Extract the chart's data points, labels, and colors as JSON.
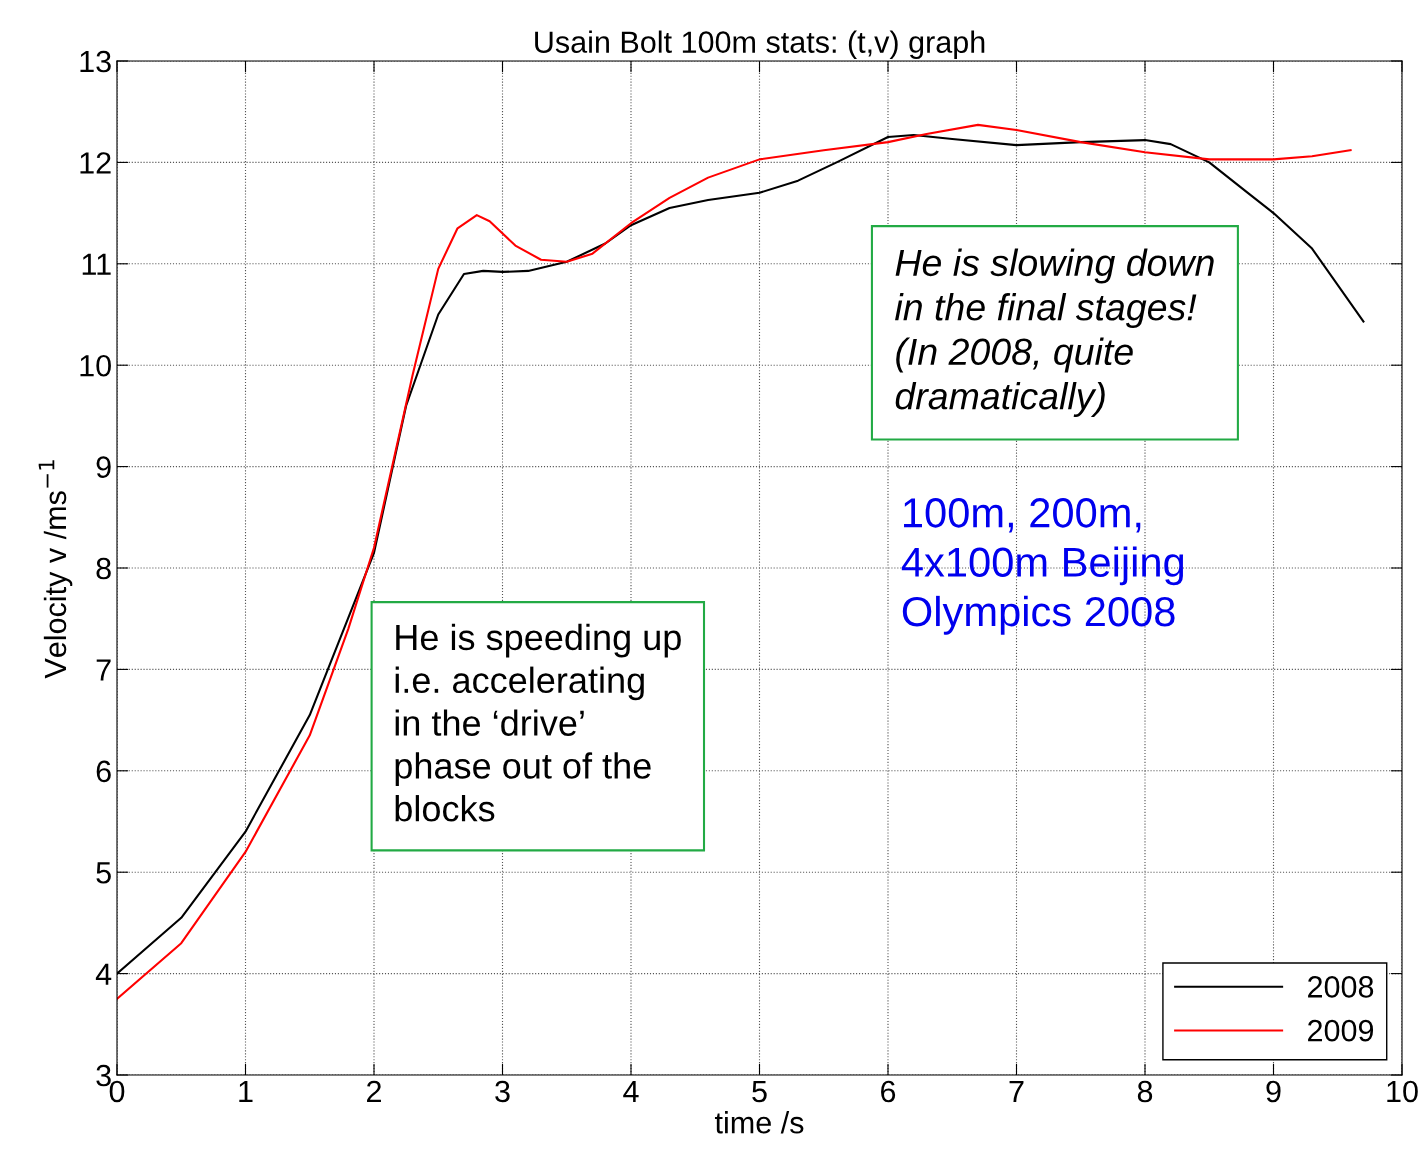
{
  "chart_data": {
    "type": "line",
    "title": "Usain Bolt 100m stats: (t,v) graph",
    "xlabel": "time /s",
    "ylabel": "Velocity v /ms$^{−1}$",
    "xlim": [
      0,
      10
    ],
    "xticks": [
      0,
      1,
      2,
      3,
      4,
      5,
      6,
      7,
      8,
      9,
      10
    ],
    "ylim": [
      3,
      13
    ],
    "yticks": [
      3,
      4,
      5,
      6,
      7,
      8,
      9,
      10,
      11,
      12,
      13
    ],
    "grid": true,
    "legend": "bottom right",
    "line_style": "solid",
    "series": [
      {
        "name": "2008",
        "color": "#000000",
        "x": [
          0,
          0.5,
          1,
          1.5,
          2,
          2.25,
          2.5,
          2.7,
          2.85,
          3.0,
          3.2,
          3.5,
          3.8,
          4.0,
          4.3,
          4.6,
          5.0,
          5.3,
          5.6,
          6.0,
          6.2,
          6.5,
          7.0,
          7.5,
          8.0,
          8.2,
          8.5,
          8.8,
          9.0,
          9.3,
          9.7
        ],
        "values": [
          4.0,
          4.55,
          5.4,
          6.55,
          8.15,
          9.6,
          10.5,
          10.9,
          10.93,
          10.92,
          10.93,
          11.02,
          11.2,
          11.38,
          11.55,
          11.63,
          11.7,
          11.82,
          12.0,
          12.25,
          12.27,
          12.23,
          12.17,
          12.2,
          12.22,
          12.18,
          12.0,
          11.7,
          11.5,
          11.15,
          10.43
        ]
      },
      {
        "name": "2009",
        "color": "#ff0000",
        "x": [
          0,
          0.5,
          1,
          1.5,
          1.8,
          2,
          2.3,
          2.5,
          2.65,
          2.8,
          2.9,
          3.1,
          3.3,
          3.5,
          3.7,
          4.0,
          4.3,
          4.6,
          5.0,
          5.5,
          6.0,
          6.3,
          6.7,
          7.0,
          7.5,
          8.0,
          8.5,
          9.0,
          9.3,
          9.6
        ],
        "values": [
          3.75,
          4.3,
          5.2,
          6.35,
          7.4,
          8.2,
          9.9,
          10.95,
          11.35,
          11.48,
          11.42,
          11.18,
          11.04,
          11.02,
          11.1,
          11.4,
          11.65,
          11.85,
          12.03,
          12.12,
          12.2,
          12.28,
          12.37,
          12.32,
          12.2,
          12.1,
          12.03,
          12.03,
          12.06,
          12.12
        ]
      }
    ],
    "annotations": [
      "He is speeding up\ni.e. accelerating\nin the ‘drive’\nphase out of the\nblocks",
      "He is slowing down\nin the final stages!\n(In 2008, quite\ndramatically)",
      "100m, 200m,\n4x100m Beijing\nOlympics 2008"
    ]
  }
}
